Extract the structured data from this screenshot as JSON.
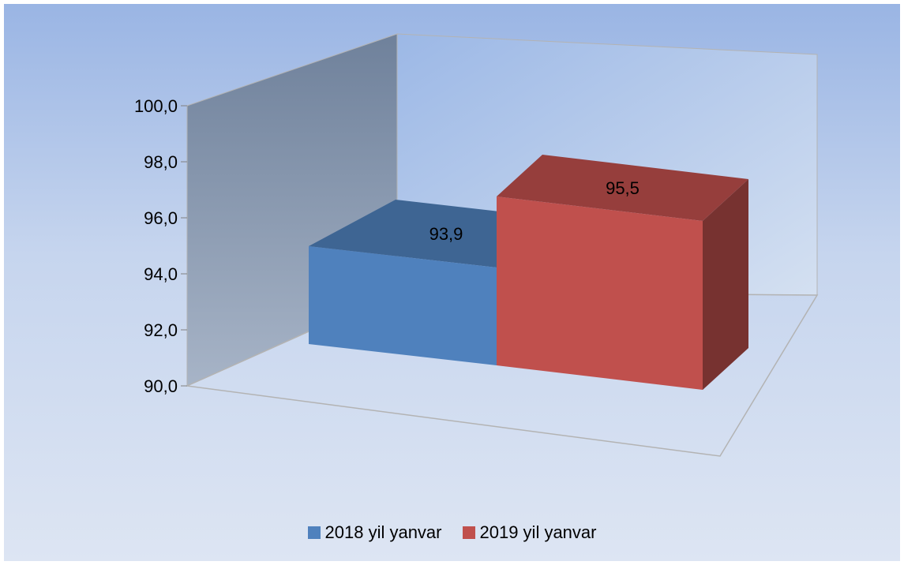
{
  "chart_data": {
    "type": "bar",
    "categories": [
      ""
    ],
    "series": [
      {
        "name": "2018 yil yanvar",
        "values": [
          93.9
        ],
        "color": "#4f81bd",
        "label": "93,9"
      },
      {
        "name": "2019 yil yanvar",
        "values": [
          95.5
        ],
        "color": "#c0504d",
        "label": "95,5"
      }
    ],
    "ylim": [
      90,
      100
    ],
    "yticks": [
      "90,0",
      "92,0",
      "94,0",
      "96,0",
      "98,0",
      "100,0"
    ],
    "title": "",
    "xlabel": "",
    "ylabel": "",
    "legend_position": "bottom",
    "three_d": true
  }
}
